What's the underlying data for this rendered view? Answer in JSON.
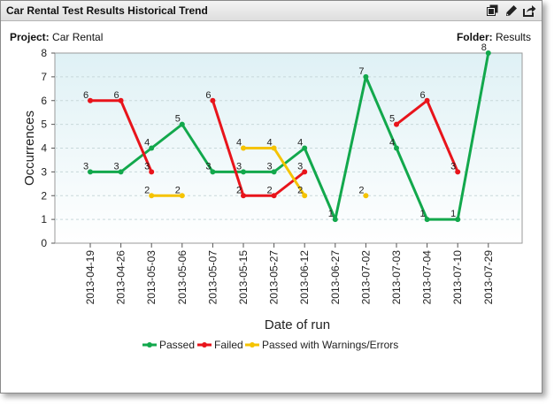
{
  "panel": {
    "title": "Car Rental Test Results Historical Trend",
    "project_label": "Project:",
    "project_value": "Car Rental",
    "folder_label": "Folder:",
    "folder_value": "Results",
    "icons": [
      "copy-icon",
      "edit-pencil-icon",
      "export-icon"
    ]
  },
  "chart_data": {
    "type": "line",
    "title": "",
    "xlabel": "Date of run",
    "ylabel": "Occurrences",
    "ylim": [
      0,
      8
    ],
    "yticks": [
      "0",
      "1",
      "2",
      "3",
      "4",
      "5",
      "6",
      "7",
      "8"
    ],
    "grid": "horizontal dashed",
    "legend_position": "bottom",
    "categories": [
      "2013-04-19",
      "2013-04-26",
      "2013-05-03",
      "2013-05-06",
      "2013-05-07",
      "2013-05-15",
      "2013-05-27",
      "2013-06-12",
      "2013-06-27",
      "2013-07-02",
      "2013-07-03",
      "2013-07-04",
      "2013-07-10",
      "2013-07-29"
    ],
    "series": [
      {
        "name": "Passed",
        "color": "#12a84c",
        "values": [
          3,
          3,
          4,
          5,
          3,
          3,
          3,
          4,
          1,
          7,
          4,
          1,
          1,
          8
        ]
      },
      {
        "name": "Failed",
        "color": "#e8141b",
        "values": [
          6,
          6,
          3,
          null,
          6,
          2,
          2,
          3,
          null,
          null,
          5,
          6,
          3,
          null
        ]
      },
      {
        "name": "Passed with Warnings/Errors",
        "color": "#f5c300",
        "values": [
          null,
          null,
          2,
          2,
          null,
          4,
          4,
          2,
          null,
          2,
          null,
          null,
          null,
          null
        ]
      }
    ]
  }
}
